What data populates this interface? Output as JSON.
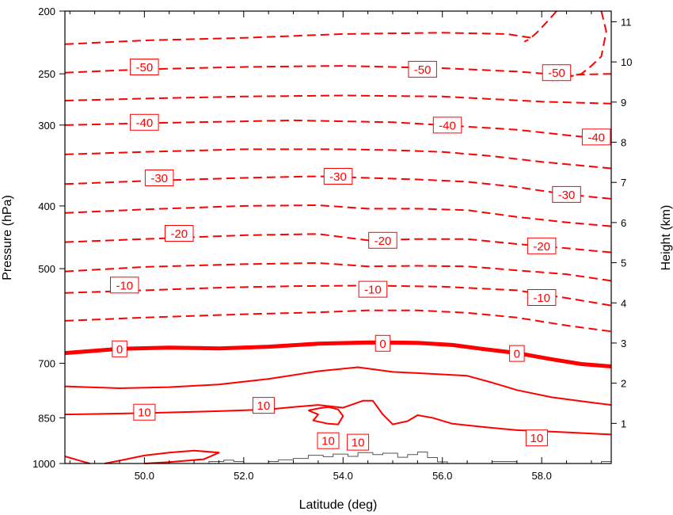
{
  "chart_data": {
    "type": "contour",
    "xlabel": "Latitude (deg)",
    "ylabel_left": "Pressure (hPa)",
    "ylabel_right": "Height (km)",
    "xlim": [
      48.4,
      59.4
    ],
    "x_ticks": [
      {
        "value": 50,
        "label": "50.0"
      },
      {
        "value": 52,
        "label": "52.0"
      },
      {
        "value": 54,
        "label": "54.0"
      },
      {
        "value": 56,
        "label": "56.0"
      },
      {
        "value": 58,
        "label": "58.0"
      }
    ],
    "ylim_pressure_hpa": [
      1000,
      200
    ],
    "y_left_ticks": [
      200,
      250,
      300,
      400,
      500,
      700,
      850,
      1000
    ],
    "y_right_ticks_km": [
      1,
      2,
      3,
      4,
      5,
      6,
      7,
      8,
      9,
      10,
      11
    ],
    "contour_color": "#ff0000",
    "contour_interval_degC": 5,
    "negative_style": "dashed",
    "positive_style": "solid",
    "zero_style": "thick solid",
    "contours": [
      {
        "level": -55,
        "points": [
          [
            58.3,
            200
          ],
          [
            58.1,
            208
          ],
          [
            57.9,
            216
          ],
          [
            57.75,
            221
          ],
          [
            57.65,
            223
          ]
        ]
      },
      {
        "level": -55,
        "points": [
          [
            59.2,
            200
          ],
          [
            59.3,
            215
          ],
          [
            59.2,
            235
          ],
          [
            59.0,
            243
          ],
          [
            58.8,
            250
          ],
          [
            58.5,
            253
          ],
          [
            58.2,
            256
          ]
        ]
      },
      {
        "level": -55,
        "points": [
          [
            48.4,
            225
          ],
          [
            50,
            222
          ],
          [
            52,
            220
          ],
          [
            54,
            217
          ],
          [
            56,
            216
          ],
          [
            57.3,
            217
          ],
          [
            57.8,
            220
          ]
        ]
      },
      {
        "level": -50,
        "points": [
          [
            48.4,
            249
          ],
          [
            50,
            246
          ],
          [
            52,
            244
          ],
          [
            54,
            243
          ],
          [
            56,
            245
          ],
          [
            57.5,
            248
          ],
          [
            58.4,
            251
          ],
          [
            59.4,
            250
          ]
        ]
      },
      {
        "level": -45,
        "points": [
          [
            48.4,
            275
          ],
          [
            50,
            273
          ],
          [
            52,
            271
          ],
          [
            54,
            270
          ],
          [
            56,
            271
          ],
          [
            58,
            276
          ],
          [
            59.4,
            278
          ]
        ]
      },
      {
        "level": -40,
        "points": [
          [
            48.4,
            300
          ],
          [
            50,
            298
          ],
          [
            51,
            297
          ],
          [
            52,
            296
          ],
          [
            53,
            295
          ],
          [
            54,
            296
          ],
          [
            55,
            297
          ],
          [
            56,
            300
          ],
          [
            57.5,
            305
          ],
          [
            58.5,
            311
          ],
          [
            59.4,
            316
          ]
        ]
      },
      {
        "level": -35,
        "points": [
          [
            48.4,
            333
          ],
          [
            50,
            330
          ],
          [
            52,
            327
          ],
          [
            54,
            327
          ],
          [
            55,
            328
          ],
          [
            56,
            330
          ],
          [
            57,
            335
          ],
          [
            58,
            342
          ],
          [
            59.4,
            350
          ]
        ]
      },
      {
        "level": -30,
        "points": [
          [
            48.4,
            370
          ],
          [
            50,
            366
          ],
          [
            52,
            362
          ],
          [
            53.5,
            360
          ],
          [
            54.5,
            362
          ],
          [
            55.5,
            364
          ],
          [
            56.5,
            367
          ],
          [
            57.5,
            374
          ],
          [
            58.5,
            384
          ],
          [
            59.4,
            390
          ]
        ]
      },
      {
        "level": -25,
        "points": [
          [
            48.4,
            410
          ],
          [
            50,
            405
          ],
          [
            52,
            400
          ],
          [
            53.5,
            399
          ],
          [
            54.5,
            404
          ],
          [
            55.5,
            404
          ],
          [
            56.5,
            406
          ],
          [
            57.5,
            416
          ],
          [
            58.5,
            424
          ],
          [
            59.4,
            430
          ]
        ]
      },
      {
        "level": -20,
        "points": [
          [
            48.4,
            455
          ],
          [
            50,
            450
          ],
          [
            52,
            444
          ],
          [
            53.5,
            442
          ],
          [
            54.5,
            452
          ],
          [
            55.5,
            450
          ],
          [
            56.5,
            450
          ],
          [
            57.5,
            458
          ],
          [
            58.5,
            465
          ],
          [
            59.4,
            472
          ]
        ]
      },
      {
        "level": -15,
        "points": [
          [
            48.4,
            505
          ],
          [
            50,
            497
          ],
          [
            52,
            492
          ],
          [
            53.5,
            490
          ],
          [
            54.5,
            496
          ],
          [
            55.5,
            495
          ],
          [
            56.5,
            496
          ],
          [
            57.5,
            503
          ],
          [
            58.5,
            510
          ],
          [
            59.4,
            522
          ]
        ]
      },
      {
        "level": -10,
        "points": [
          [
            48.4,
            545
          ],
          [
            50,
            540
          ],
          [
            51.5,
            535
          ],
          [
            53,
            532
          ],
          [
            54.5,
            531
          ],
          [
            56,
            533
          ],
          [
            57.5,
            540
          ],
          [
            58.5,
            555
          ],
          [
            59.4,
            570
          ]
        ]
      },
      {
        "level": -5,
        "points": [
          [
            48.4,
            602
          ],
          [
            50,
            595
          ],
          [
            52,
            588
          ],
          [
            53.5,
            584
          ],
          [
            54.5,
            580
          ],
          [
            55.5,
            580
          ],
          [
            56.5,
            585
          ],
          [
            57.5,
            595
          ],
          [
            58.5,
            612
          ],
          [
            59.4,
            625
          ]
        ]
      },
      {
        "level": 0,
        "points": [
          [
            48.4,
            675
          ],
          [
            49.5,
            665
          ],
          [
            50.5,
            662
          ],
          [
            51.5,
            664
          ],
          [
            52.5,
            660
          ],
          [
            53.5,
            653
          ],
          [
            54.5,
            650
          ],
          [
            55.5,
            651
          ],
          [
            56.2,
            656
          ],
          [
            56.8,
            665
          ],
          [
            57.5,
            675
          ],
          [
            58.2,
            690
          ],
          [
            58.8,
            702
          ],
          [
            59.4,
            708
          ]
        ]
      },
      {
        "level": 5,
        "points": [
          [
            48.4,
            760
          ],
          [
            49.5,
            765
          ],
          [
            50.5,
            762
          ],
          [
            51.5,
            755
          ],
          [
            52.5,
            740
          ],
          [
            53.5,
            720
          ],
          [
            54.3,
            710
          ],
          [
            55,
            722
          ],
          [
            55.5,
            725
          ],
          [
            56.5,
            732
          ],
          [
            57,
            750
          ],
          [
            57.5,
            770
          ],
          [
            58.2,
            790
          ],
          [
            59,
            805
          ],
          [
            59.4,
            812
          ]
        ]
      },
      {
        "level": 10,
        "points": [
          [
            48.4,
            840
          ],
          [
            50,
            836
          ],
          [
            51.5,
            830
          ],
          [
            52.5,
            825
          ],
          [
            53,
            818
          ],
          [
            53.5,
            812
          ],
          [
            54,
            820
          ],
          [
            54.4,
            800
          ],
          [
            54.6,
            800
          ],
          [
            54.8,
            840
          ],
          [
            55,
            870
          ],
          [
            55.3,
            860
          ],
          [
            55.5,
            842
          ],
          [
            55.8,
            850
          ],
          [
            56.2,
            868
          ],
          [
            56.8,
            878
          ],
          [
            57.5,
            888
          ],
          [
            58.5,
            895
          ],
          [
            59.4,
            902
          ]
        ]
      },
      {
        "level": 10,
        "points": [
          [
            53.3,
            828
          ],
          [
            53.5,
            840
          ],
          [
            53.4,
            858
          ],
          [
            53.7,
            868
          ],
          [
            53.9,
            870
          ],
          [
            54,
            845
          ],
          [
            53.9,
            825
          ],
          [
            53.7,
            818
          ],
          [
            53.5,
            822
          ],
          [
            53.3,
            828
          ]
        ]
      },
      {
        "level": 15,
        "points": [
          [
            48.4,
            975
          ],
          [
            48.7,
            990
          ],
          [
            48.9,
            1000
          ]
        ]
      },
      {
        "level": 15,
        "points": [
          [
            49.2,
            1000
          ],
          [
            49.5,
            990
          ],
          [
            50,
            972
          ],
          [
            50.5,
            962
          ],
          [
            51,
            955
          ],
          [
            51.5,
            962
          ],
          [
            51.2,
            985
          ],
          [
            50.5,
            995
          ],
          [
            50,
            1000
          ]
        ]
      }
    ],
    "contour_labels": [
      {
        "text": "-50",
        "x": 50.0,
        "p": 244
      },
      {
        "text": "-50",
        "x": 55.6,
        "p": 246
      },
      {
        "text": "-50",
        "x": 58.3,
        "p": 249
      },
      {
        "text": "-40",
        "x": 50.0,
        "p": 297
      },
      {
        "text": "-40",
        "x": 56.1,
        "p": 300
      },
      {
        "text": "-40",
        "x": 59.1,
        "p": 313
      },
      {
        "text": "-30",
        "x": 50.3,
        "p": 362
      },
      {
        "text": "-30",
        "x": 53.9,
        "p": 360
      },
      {
        "text": "-30",
        "x": 58.5,
        "p": 384
      },
      {
        "text": "-20",
        "x": 50.7,
        "p": 441
      },
      {
        "text": "-20",
        "x": 54.8,
        "p": 452
      },
      {
        "text": "-20",
        "x": 58.0,
        "p": 461
      },
      {
        "text": "-10",
        "x": 49.6,
        "p": 530
      },
      {
        "text": "-10",
        "x": 54.6,
        "p": 538
      },
      {
        "text": "-10",
        "x": 58.0,
        "p": 554
      },
      {
        "text": "0",
        "x": 49.5,
        "p": 665
      },
      {
        "text": "0",
        "x": 54.8,
        "p": 652
      },
      {
        "text": "0",
        "x": 57.5,
        "p": 676
      },
      {
        "text": "10",
        "x": 50.0,
        "p": 833
      },
      {
        "text": "10",
        "x": 52.4,
        "p": 813
      },
      {
        "text": "10",
        "x": 53.7,
        "p": 922
      },
      {
        "text": "10",
        "x": 54.3,
        "p": 927
      },
      {
        "text": "10",
        "x": 57.9,
        "p": 913
      }
    ],
    "orography": {
      "color": "#555555",
      "points": [
        [
          48.4,
          1000
        ],
        [
          51.3,
          1000
        ],
        [
          51.3,
          993
        ],
        [
          51.6,
          993
        ],
        [
          51.6,
          988
        ],
        [
          51.8,
          988
        ],
        [
          51.8,
          993
        ],
        [
          52,
          993
        ],
        [
          52,
          1000
        ],
        [
          52.5,
          1000
        ],
        [
          52.5,
          993
        ],
        [
          52.7,
          993
        ],
        [
          52.7,
          987
        ],
        [
          53,
          987
        ],
        [
          53,
          982
        ],
        [
          53.3,
          982
        ],
        [
          53.3,
          971
        ],
        [
          53.6,
          971
        ],
        [
          53.6,
          976
        ],
        [
          53.8,
          976
        ],
        [
          53.8,
          967
        ],
        [
          54.1,
          967
        ],
        [
          54.1,
          975
        ],
        [
          54.3,
          975
        ],
        [
          54.3,
          962
        ],
        [
          54.6,
          962
        ],
        [
          54.6,
          969
        ],
        [
          54.8,
          969
        ],
        [
          54.8,
          964
        ],
        [
          55.1,
          964
        ],
        [
          55.1,
          978
        ],
        [
          55.3,
          978
        ],
        [
          55.3,
          969
        ],
        [
          55.5,
          969
        ],
        [
          55.5,
          960
        ],
        [
          55.7,
          960
        ],
        [
          55.7,
          979
        ],
        [
          55.9,
          979
        ],
        [
          55.9,
          994
        ],
        [
          56.1,
          994
        ],
        [
          56.1,
          1000
        ],
        [
          57.0,
          1000
        ],
        [
          57.0,
          993
        ],
        [
          57.5,
          993
        ],
        [
          57.5,
          1000
        ],
        [
          59.2,
          1000
        ],
        [
          59.2,
          993
        ],
        [
          59.4,
          993
        ]
      ]
    }
  }
}
